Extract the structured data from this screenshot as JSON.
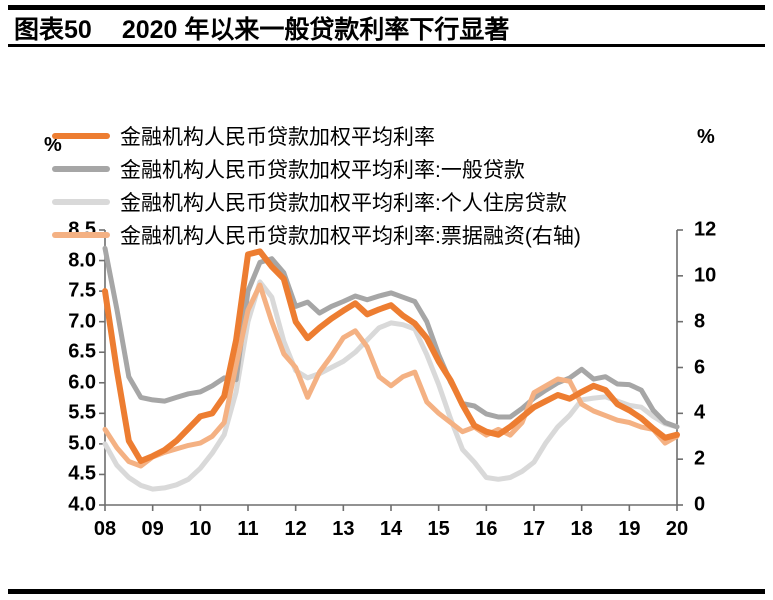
{
  "header": {
    "figure_label": "图表50",
    "title": "2020 年以来一般贷款利率下行显著"
  },
  "axes": {
    "left_unit": "%",
    "right_unit": "%",
    "left_ticks": [
      "8.5",
      "8.0",
      "7.5",
      "7.0",
      "6.5",
      "6.0",
      "5.5",
      "5.0",
      "4.5",
      "4.0"
    ],
    "right_ticks": [
      "12",
      "10",
      "8",
      "6",
      "4",
      "2",
      "0"
    ],
    "x_ticks": [
      "08",
      "09",
      "10",
      "11",
      "12",
      "13",
      "14",
      "15",
      "16",
      "17",
      "18",
      "19",
      "20"
    ]
  },
  "legend": [
    {
      "label": "金融机构人民币贷款加权平均利率",
      "color": "#ED7D31"
    },
    {
      "label": "金融机构人民币贷款加权平均利率:一般贷款",
      "color": "#A6A6A6"
    },
    {
      "label": "金融机构人民币贷款加权平均利率:个人住房贷款",
      "color": "#D9D9D9"
    },
    {
      "label": "金融机构人民币贷款加权平均利率:票据融资(右轴)",
      "color": "#F4B183"
    }
  ],
  "chart_data": {
    "type": "line",
    "title": "2020 年以来一般贷款利率下行显著",
    "x_unit": "quarter",
    "x_range": "2008Q1-2020Q1",
    "x_tick_labels": [
      "08",
      "09",
      "10",
      "11",
      "12",
      "13",
      "14",
      "15",
      "16",
      "17",
      "18",
      "19",
      "20"
    ],
    "left_axis": {
      "label": "%",
      "min": 4.0,
      "max": 8.5,
      "step": 0.5
    },
    "right_axis": {
      "label": "%",
      "min": 0,
      "max": 12,
      "step": 2
    },
    "grid": false,
    "legend_position": "top-left",
    "x": [
      "2008Q1",
      "2008Q2",
      "2008Q3",
      "2008Q4",
      "2009Q1",
      "2009Q2",
      "2009Q3",
      "2009Q4",
      "2010Q1",
      "2010Q2",
      "2010Q3",
      "2010Q4",
      "2011Q1",
      "2011Q2",
      "2011Q3",
      "2011Q4",
      "2012Q1",
      "2012Q2",
      "2012Q3",
      "2012Q4",
      "2013Q1",
      "2013Q2",
      "2013Q3",
      "2013Q4",
      "2014Q1",
      "2014Q2",
      "2014Q3",
      "2014Q4",
      "2015Q1",
      "2015Q2",
      "2015Q3",
      "2015Q4",
      "2016Q1",
      "2016Q2",
      "2016Q3",
      "2016Q4",
      "2017Q1",
      "2017Q2",
      "2017Q3",
      "2017Q4",
      "2018Q1",
      "2018Q2",
      "2018Q3",
      "2018Q4",
      "2019Q1",
      "2019Q2",
      "2019Q3",
      "2019Q4",
      "2020Q1"
    ],
    "series": [
      {
        "key": "overall",
        "name": "金融机构人民币贷款加权平均利率",
        "axis": "left",
        "color": "#ED7D31",
        "values": [
          7.5,
          6.2,
          5.05,
          4.72,
          4.8,
          4.9,
          5.05,
          5.25,
          5.45,
          5.5,
          5.78,
          6.7,
          8.1,
          8.15,
          7.9,
          7.7,
          7.0,
          6.73,
          6.9,
          7.05,
          7.18,
          7.3,
          7.12,
          7.2,
          7.27,
          7.1,
          6.97,
          6.73,
          6.35,
          6.04,
          5.64,
          5.3,
          5.2,
          5.15,
          5.28,
          5.44,
          5.6,
          5.7,
          5.8,
          5.74,
          5.85,
          5.95,
          5.88,
          5.65,
          5.55,
          5.42,
          5.25,
          5.1,
          5.15
        ]
      },
      {
        "key": "general",
        "name": "金融机构人民币贷款加权平均利率:一般贷款",
        "axis": "left",
        "color": "#A6A6A6",
        "values": [
          8.2,
          7.2,
          6.1,
          5.76,
          5.72,
          5.7,
          5.76,
          5.82,
          5.85,
          5.95,
          6.08,
          6.05,
          7.5,
          7.97,
          8.03,
          7.8,
          7.25,
          7.32,
          7.14,
          7.25,
          7.33,
          7.42,
          7.36,
          7.42,
          7.47,
          7.4,
          7.33,
          7.0,
          6.46,
          6.01,
          5.66,
          5.62,
          5.49,
          5.44,
          5.44,
          5.58,
          5.75,
          5.88,
          6.0,
          6.08,
          6.22,
          6.06,
          6.1,
          5.98,
          5.97,
          5.88,
          5.55,
          5.35,
          5.28
        ]
      },
      {
        "key": "mortgage",
        "name": "金融机构人民币贷款加权平均利率:个人住房贷款",
        "axis": "left",
        "color": "#D9D9D9",
        "values": [
          5.0,
          4.65,
          4.45,
          4.32,
          4.26,
          4.28,
          4.33,
          4.42,
          4.6,
          4.85,
          5.15,
          5.85,
          7.0,
          7.65,
          7.4,
          6.68,
          6.2,
          6.08,
          6.15,
          6.25,
          6.35,
          6.5,
          6.7,
          6.9,
          6.98,
          6.95,
          6.88,
          6.46,
          5.97,
          5.41,
          4.91,
          4.7,
          4.45,
          4.42,
          4.45,
          4.55,
          4.7,
          5.02,
          5.28,
          5.47,
          5.72,
          5.75,
          5.77,
          5.7,
          5.63,
          5.6,
          5.45,
          5.33,
          5.28
        ]
      },
      {
        "key": "bills",
        "name": "金融机构人民币贷款加权平均利率:票据融资(右轴)",
        "axis": "right",
        "color": "#F4B183",
        "values": [
          3.3,
          2.5,
          1.9,
          1.7,
          2.1,
          2.3,
          2.45,
          2.6,
          2.7,
          3.0,
          3.6,
          6.1,
          8.5,
          9.6,
          8.0,
          6.6,
          6.0,
          4.7,
          5.8,
          6.5,
          7.3,
          7.6,
          6.9,
          5.6,
          5.2,
          5.6,
          5.8,
          4.5,
          4.0,
          3.6,
          3.2,
          3.4,
          3.05,
          3.3,
          3.05,
          3.6,
          4.9,
          5.2,
          5.5,
          5.4,
          4.4,
          4.1,
          3.9,
          3.7,
          3.6,
          3.4,
          3.3,
          2.7,
          3.0
        ]
      }
    ]
  }
}
